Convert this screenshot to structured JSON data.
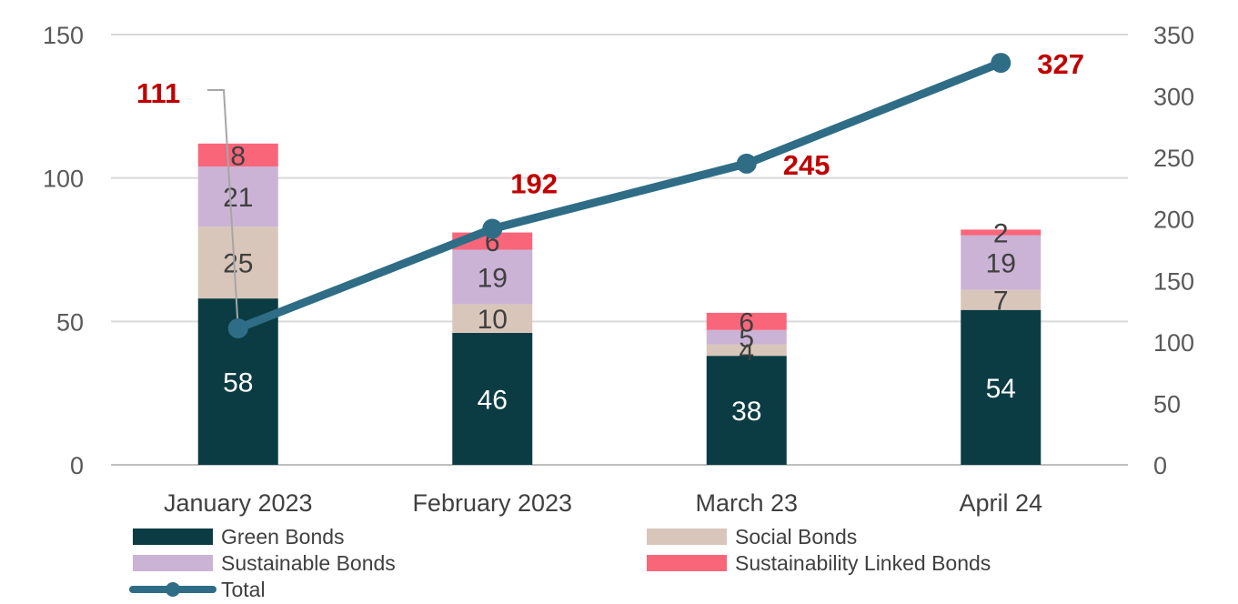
{
  "chart_data": {
    "type": "bar",
    "stacked": true,
    "categories": [
      "January 2023",
      "February 2023",
      "March 23",
      "April 24"
    ],
    "series": [
      {
        "name": "Green Bonds",
        "values": [
          58,
          46,
          38,
          54
        ],
        "color": "#0b3c44",
        "label_color": "#ffffff"
      },
      {
        "name": "Social Bonds",
        "values": [
          25,
          10,
          4,
          7
        ],
        "color": "#d9c6ba",
        "label_color": "#404040"
      },
      {
        "name": "Sustainable Bonds",
        "values": [
          21,
          19,
          5,
          19
        ],
        "color": "#cbb3d6",
        "label_color": "#404040"
      },
      {
        "name": "Sustainability Linked Bonds",
        "values": [
          8,
          6,
          6,
          2
        ],
        "color": "#f9667a",
        "label_color": "#404040"
      }
    ],
    "line_series": {
      "name": "Total",
      "values": [
        111,
        192,
        245,
        327
      ],
      "color": "#2f6d86",
      "label_color": "#c00000",
      "axis": "right"
    },
    "y_left": {
      "min": 0,
      "max": 150,
      "ticks": [
        0,
        50,
        100,
        150
      ]
    },
    "y_right": {
      "min": 0,
      "max": 350,
      "ticks": [
        0,
        50,
        100,
        150,
        200,
        250,
        300,
        350
      ]
    },
    "grid": true,
    "legend": "bottom"
  }
}
